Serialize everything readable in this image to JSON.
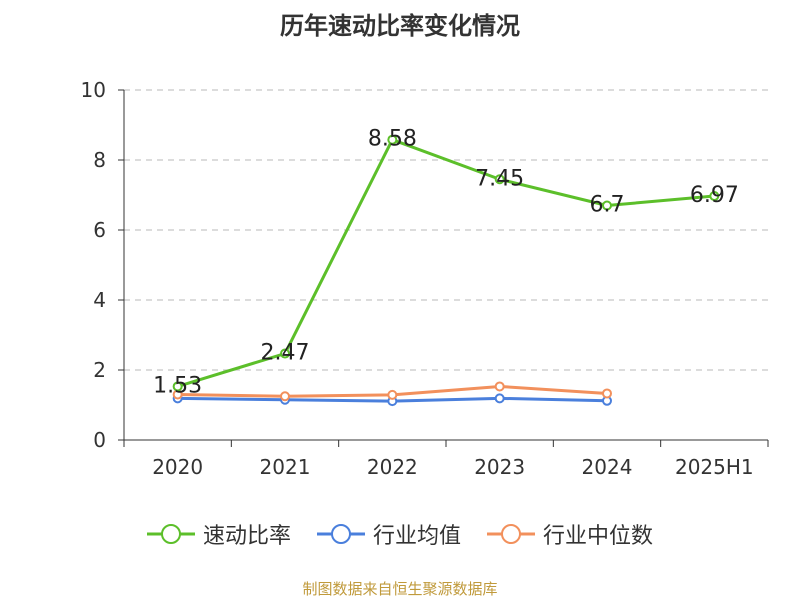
{
  "chart_data": {
    "type": "line",
    "title": "历年速动比率变化情况",
    "categories": [
      "2020",
      "2021",
      "2022",
      "2023",
      "2024",
      "2025H1"
    ],
    "ylim": [
      0,
      10
    ],
    "yticks": [
      "0",
      "2",
      "4",
      "6",
      "8",
      "10"
    ],
    "grid": true,
    "legend_position": "bottom",
    "series": [
      {
        "name": "速动比率",
        "color": "#5cbf2a",
        "values": [
          1.53,
          2.47,
          8.58,
          7.45,
          6.7,
          6.97
        ],
        "labels": [
          "1.53",
          "2.47",
          "8.58",
          "7.45",
          "6.7",
          "6.97"
        ]
      },
      {
        "name": "行业均值",
        "color": "#4a7fdc",
        "values": [
          1.19,
          1.15,
          1.11,
          1.19,
          1.12,
          null
        ]
      },
      {
        "name": "行业中位数",
        "color": "#f2905c",
        "values": [
          1.3,
          1.25,
          1.29,
          1.53,
          1.33,
          null
        ]
      }
    ]
  },
  "source": "制图数据来自恒生聚源数据库"
}
